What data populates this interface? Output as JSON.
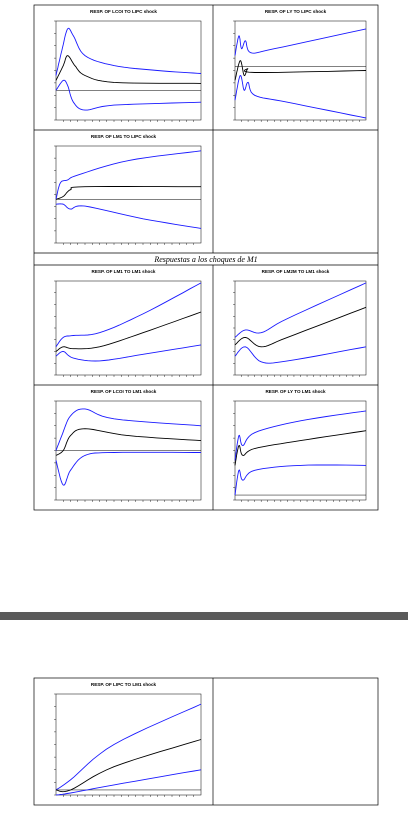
{
  "panels": [
    {
      "title": "RESP. OF LCOI TO LIPC shock"
    },
    {
      "title": "RESP. OF LY TO LIPC shock"
    },
    {
      "title": "RESP. OF LM1 TO LIPC shock"
    },
    {
      "title": "RESP. OF LM1 TO LM1 shock"
    },
    {
      "title": "RESP. OF LM2M TO LM1 shock"
    },
    {
      "title": "RESP. OF LCOI TO LM1 shock"
    },
    {
      "title": "RESP. OF LY TO LM1 shock"
    },
    {
      "title": "RESP. OF LIPC TO LM1 shock"
    }
  ],
  "caption": "Respuestas a los choques de M1"
}
